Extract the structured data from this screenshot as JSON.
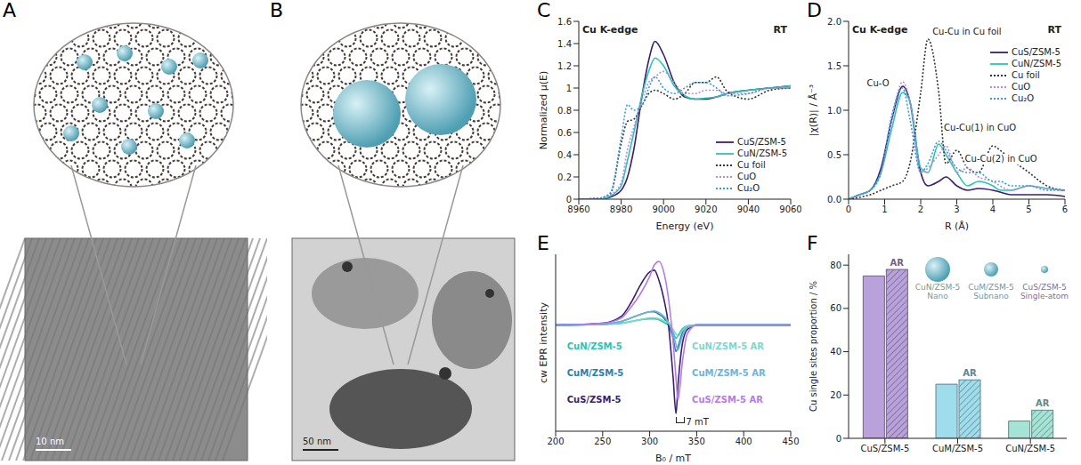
{
  "illustrations": [
    {
      "letter": "A",
      "scale_bar": "10 nm"
    },
    {
      "letter": "B",
      "scale_bar": "50 nm"
    }
  ],
  "chart_data": [
    {
      "letter": "C",
      "type": "line",
      "title": "Cu K-edge",
      "annotations": [
        "RT"
      ],
      "x_label": "Energy (eV)",
      "y_label": "Normalized μ(E)",
      "x": [
        8960,
        8970,
        8975,
        8980,
        8983,
        8986,
        8990,
        8993,
        8996,
        9000,
        9005,
        9010,
        9015,
        9020,
        9025,
        9030,
        9040,
        9050,
        9060
      ],
      "xlim": [
        8960,
        9060
      ],
      "xticks": [
        8960,
        8980,
        9000,
        9020,
        9040,
        9060
      ],
      "ylim": [
        0,
        1.6
      ],
      "yticks": [
        0,
        0.2,
        0.4,
        0.6,
        0.8,
        1,
        1.2,
        1.4,
        1.6
      ],
      "legend": "lower right",
      "series": [
        {
          "name": "CuS/ZSM-5",
          "color": "#3a1f6e",
          "line_style": "solid",
          "values": [
            0,
            0,
            0.02,
            0.08,
            0.2,
            0.45,
            0.95,
            1.25,
            1.42,
            1.3,
            1.05,
            0.92,
            0.9,
            0.9,
            0.92,
            0.95,
            0.98,
            1.0,
            1.02
          ]
        },
        {
          "name": "CuN/ZSM-5",
          "color": "#2cc3b5",
          "line_style": "solid",
          "values": [
            0,
            0,
            0.03,
            0.12,
            0.35,
            0.6,
            0.95,
            1.15,
            1.27,
            1.2,
            1.02,
            0.93,
            0.9,
            0.91,
            0.92,
            0.95,
            0.98,
            1.0,
            1.02
          ]
        },
        {
          "name": "Cu foil",
          "color": "#333333",
          "line_style": "dotted",
          "values": [
            0,
            0.01,
            0.05,
            0.5,
            0.7,
            0.72,
            0.85,
            0.95,
            0.98,
            0.95,
            0.9,
            0.95,
            1.05,
            1.05,
            1.1,
            0.97,
            0.9,
            0.98,
            1.0
          ]
        },
        {
          "name": "CuO",
          "color": "#b88ae0",
          "line_style": "dotted",
          "values": [
            0,
            0.01,
            0.04,
            0.15,
            0.45,
            0.65,
            0.9,
            1.05,
            1.1,
            1.15,
            1.05,
            0.95,
            0.95,
            0.98,
            0.98,
            0.95,
            0.95,
            1.0,
            1.0
          ]
        },
        {
          "name": "Cu₂O",
          "color": "#3a9bd9",
          "line_style": "dotted",
          "values": [
            0,
            0.01,
            0.06,
            0.55,
            0.85,
            0.8,
            0.85,
            1.0,
            1.1,
            1.0,
            0.95,
            1.0,
            1.05,
            1.05,
            1.0,
            0.93,
            0.95,
            1.0,
            1.0
          ]
        }
      ]
    },
    {
      "letter": "D",
      "type": "line",
      "title": "Cu K-edge",
      "annotations": [
        "RT",
        "Cu-O",
        "Cu-Cu in Cu foil",
        "Cu-Cu(1) in CuO",
        "Cu-Cu(2) in CuO"
      ],
      "x_label": "R (Å)",
      "y_label": "|χ(R)| / Å⁻³",
      "x": [
        0,
        0.3,
        0.6,
        0.9,
        1.2,
        1.5,
        1.7,
        2.0,
        2.2,
        2.5,
        2.7,
        3.0,
        3.3,
        3.6,
        4.0,
        4.2,
        4.5,
        5.0,
        5.5,
        6.0
      ],
      "xlim": [
        0,
        6
      ],
      "xticks": [
        0,
        1,
        2,
        3,
        4,
        5,
        6
      ],
      "ylim": [
        0,
        2
      ],
      "yticks": [
        {
          "value": 0,
          "label": "0.0"
        },
        0.5,
        {
          "value": 1,
          "label": "1.0"
        },
        1.5,
        {
          "value": 2,
          "label": "2.0"
        }
      ],
      "legend": "upper right",
      "series": [
        {
          "name": "CuS/ZSM-5",
          "color": "#3a1f6e",
          "line_style": "solid",
          "values": [
            0,
            0.05,
            0.1,
            0.35,
            0.9,
            1.27,
            1.1,
            0.3,
            0.15,
            0.2,
            0.25,
            0.15,
            0.1,
            0.12,
            0.1,
            0.08,
            0.05,
            0.05,
            0.05,
            0.03
          ]
        },
        {
          "name": "CuN/ZSM-5",
          "color": "#2cc3b5",
          "line_style": "solid",
          "values": [
            0,
            0.05,
            0.1,
            0.3,
            0.8,
            1.2,
            1.1,
            0.35,
            0.3,
            0.62,
            0.5,
            0.3,
            0.15,
            0.2,
            0.15,
            0.1,
            0.1,
            0.15,
            0.12,
            0.1
          ]
        },
        {
          "name": "Cu foil",
          "color": "#333333",
          "line_style": "dotted",
          "values": [
            0,
            0.02,
            0.05,
            0.1,
            0.15,
            0.2,
            0.4,
            1.2,
            1.8,
            1.2,
            0.4,
            0.55,
            0.35,
            0.3,
            0.6,
            0.55,
            0.45,
            0.3,
            0.15,
            0.1
          ]
        },
        {
          "name": "CuO",
          "color": "#b88ae0",
          "line_style": "dotted",
          "values": [
            0,
            0.05,
            0.1,
            0.3,
            0.9,
            1.32,
            1.1,
            0.3,
            0.35,
            0.5,
            0.6,
            0.3,
            0.35,
            0.25,
            0.2,
            0.15,
            0.1,
            0.15,
            0.12,
            0.1
          ]
        },
        {
          "name": "Cu₂O",
          "color": "#3a9bd9",
          "line_style": "dotted",
          "values": [
            0,
            0.05,
            0.1,
            0.3,
            0.95,
            1.25,
            0.9,
            0.3,
            0.4,
            0.65,
            0.55,
            0.35,
            0.3,
            0.3,
            0.2,
            0.2,
            0.15,
            0.15,
            0.1,
            0.1
          ]
        }
      ]
    },
    {
      "letter": "E",
      "type": "line",
      "annotations": [
        "7 mT"
      ],
      "x_label": "B₀ / mT",
      "y_label": "cw EPR intensity",
      "tick_labels": "x",
      "x": [
        200,
        250,
        270,
        280,
        290,
        300,
        305,
        310,
        315,
        320,
        325,
        328,
        330,
        335,
        340,
        350,
        400,
        450
      ],
      "xlim": [
        200,
        450
      ],
      "xticks": [
        200,
        250,
        300,
        350,
        400,
        450
      ],
      "ylim": [
        -1.2,
        0.8
      ],
      "yticks": [],
      "legend": "lower center",
      "series": [
        {
          "name": "CuN/ZSM-5",
          "color": "#2cc3b5",
          "line_style": "solid",
          "values": [
            0,
            0.01,
            0.02,
            0.04,
            0.06,
            0.07,
            0.07,
            0.06,
            0.03,
            0,
            -0.08,
            -0.15,
            -0.12,
            -0.04,
            -0.01,
            0,
            0,
            0
          ]
        },
        {
          "name": "CuM/ZSM-5",
          "color": "#2a7fb0",
          "line_style": "solid",
          "values": [
            0,
            0.01,
            0.04,
            0.08,
            0.12,
            0.15,
            0.15,
            0.12,
            0.08,
            0,
            -0.15,
            -0.3,
            -0.25,
            -0.08,
            -0.02,
            0,
            0,
            0
          ]
        },
        {
          "name": "CuS/ZSM-5",
          "color": "#3a1f6e",
          "line_style": "solid",
          "values": [
            0,
            0.02,
            0.1,
            0.25,
            0.45,
            0.6,
            0.62,
            0.5,
            0.3,
            0,
            -0.6,
            -1.0,
            -0.7,
            -0.2,
            -0.05,
            0,
            0,
            0
          ]
        },
        {
          "name": "CuN/ZSM-5 AR",
          "color": "#7fd6cb",
          "line_style": "solid",
          "values": [
            0,
            0.01,
            0.02,
            0.04,
            0.06,
            0.08,
            0.08,
            0.07,
            0.05,
            0.02,
            -0.05,
            -0.1,
            -0.13,
            -0.06,
            -0.01,
            0,
            0,
            0
          ]
        },
        {
          "name": "CuM/ZSM-5 AR",
          "color": "#6fb3dc",
          "line_style": "solid",
          "values": [
            0,
            0.01,
            0.04,
            0.08,
            0.12,
            0.15,
            0.16,
            0.14,
            0.1,
            0.03,
            -0.1,
            -0.22,
            -0.28,
            -0.12,
            -0.03,
            0,
            0,
            0
          ]
        },
        {
          "name": "CuS/ZSM-5 AR",
          "color": "#b57be6",
          "line_style": "solid",
          "values": [
            0,
            0.02,
            0.08,
            0.2,
            0.35,
            0.55,
            0.68,
            0.72,
            0.6,
            0.3,
            -0.2,
            -0.6,
            -0.85,
            -0.4,
            -0.1,
            0,
            0,
            0
          ]
        }
      ]
    },
    {
      "letter": "F",
      "type": "bar",
      "y_label": "Cu single sites proportion / %",
      "categories": [
        "CuS/ZSM-5",
        "CuM/ZSM-5",
        "CuN/ZSM-5"
      ],
      "colors": [
        "#b9a2dc",
        "#9fdcec",
        "#a5e3d6"
      ],
      "ylim": [
        0,
        85
      ],
      "yticks": [
        0,
        20,
        40,
        60,
        80
      ],
      "series": [
        {
          "values": [
            75,
            25,
            8
          ]
        },
        {
          "name": "AR",
          "values": [
            78,
            27,
            13
          ]
        }
      ],
      "annotations": [
        {
          "text": "CuN/ZSM-5",
          "sub": "Nano"
        },
        {
          "text": "CuM/ZSM-5",
          "sub": "Subnano"
        },
        {
          "text": "CuS/ZSM-5",
          "sub": "Single-atom"
        }
      ]
    }
  ]
}
